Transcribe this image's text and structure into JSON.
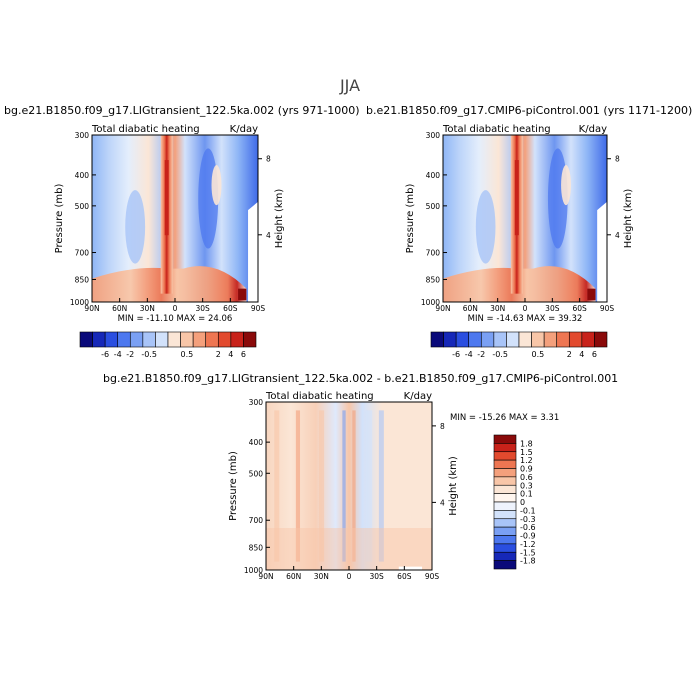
{
  "main_title": "JJA",
  "panels": [
    {
      "case": "bg.e21.B1850.f09_g17.LIGtransient_122.5ka.002 (yrs 971-1000)",
      "field": "Total diabatic heating",
      "units": "K/day",
      "stats": "MIN = -11.10   MAX =  24.06"
    },
    {
      "case": "b.e21.B1850.f09_g17.CMIP6-piControl.001 (yrs 1171-1200)",
      "field": "Total diabatic heating",
      "units": "K/day",
      "stats": "MIN = -14.63   MAX =  39.32"
    },
    {
      "case": "bg.e21.B1850.f09_g17.LIGtransient_122.5ka.002 - b.e21.B1850.f09_g17.CMIP6-piControl.001",
      "field": "Total diabatic heating",
      "units": "K/day",
      "stats": "MIN = -15.26   MAX =   3.31"
    }
  ],
  "colors": {
    "levels": [
      "#0a0a7a",
      "#1628b8",
      "#2a4ee0",
      "#4d78ef",
      "#7aa0f4",
      "#a8c4f8",
      "#d2e2fb",
      "#fbe6d6",
      "#f8c6a8",
      "#f4a07c",
      "#ee7652",
      "#e24a2e",
      "#c8221a",
      "#8a0a0a"
    ]
  },
  "chart_data": [
    {
      "type": "heatmap",
      "title": "Total diabatic heating",
      "subtitle": "bg.e21.B1850.f09_g17.LIGtransient_122.5ka.002 (yrs 971-1000)",
      "units": "K/day",
      "xlabel": "",
      "ylabel": "Pressure (mb)",
      "ylabel_right": "Height (km)",
      "x_ticks": [
        "90N",
        "60N",
        "30N",
        "0",
        "30S",
        "60S",
        "90S"
      ],
      "y_ticks": [
        1000,
        850,
        700,
        500,
        400,
        300
      ],
      "y_ticks_right": [
        4,
        8
      ],
      "x_range": [
        90,
        -90
      ],
      "y_range": [
        1000,
        300
      ],
      "min": -11.1,
      "max": 24.06,
      "colorbar_labels": [
        "-6",
        "-4",
        "-2",
        "-0.5",
        "0.5",
        "2",
        "4",
        "6"
      ]
    },
    {
      "type": "heatmap",
      "title": "Total diabatic heating",
      "subtitle": "b.e21.B1850.f09_g17.CMIP6-piControl.001 (yrs 1171-1200)",
      "units": "K/day",
      "xlabel": "",
      "ylabel": "Pressure (mb)",
      "ylabel_right": "Height (km)",
      "x_ticks": [
        "90N",
        "60N",
        "30N",
        "0",
        "30S",
        "60S",
        "90S"
      ],
      "y_ticks": [
        1000,
        850,
        700,
        500,
        400,
        300
      ],
      "y_ticks_right": [
        4,
        8
      ],
      "x_range": [
        90,
        -90
      ],
      "y_range": [
        1000,
        300
      ],
      "min": -14.63,
      "max": 39.32,
      "colorbar_labels": [
        "-6",
        "-4",
        "-2",
        "-0.5",
        "0.5",
        "2",
        "4",
        "6"
      ]
    },
    {
      "type": "heatmap",
      "title": "Total diabatic heating",
      "subtitle": "bg.e21.B1850.f09_g17.LIGtransient_122.5ka.002 - b.e21.B1850.f09_g17.CMIP6-piControl.001",
      "units": "K/day",
      "xlabel": "",
      "ylabel": "Pressure (mb)",
      "ylabel_right": "Height (km)",
      "x_ticks": [
        "90N",
        "60N",
        "30N",
        "0",
        "30S",
        "60S",
        "90S"
      ],
      "y_ticks": [
        1000,
        850,
        700,
        500,
        400,
        300
      ],
      "y_ticks_right": [
        4,
        8
      ],
      "x_range": [
        90,
        -90
      ],
      "y_range": [
        1000,
        300
      ],
      "min": -15.26,
      "max": 3.31,
      "colorbar_labels": [
        "1.8",
        "1.5",
        "1.2",
        "0.9",
        "0.6",
        "0.3",
        "0.1",
        "0",
        "-0.1",
        "-0.3",
        "-0.6",
        "-0.9",
        "-1.2",
        "-1.5",
        "-1.8"
      ]
    }
  ]
}
